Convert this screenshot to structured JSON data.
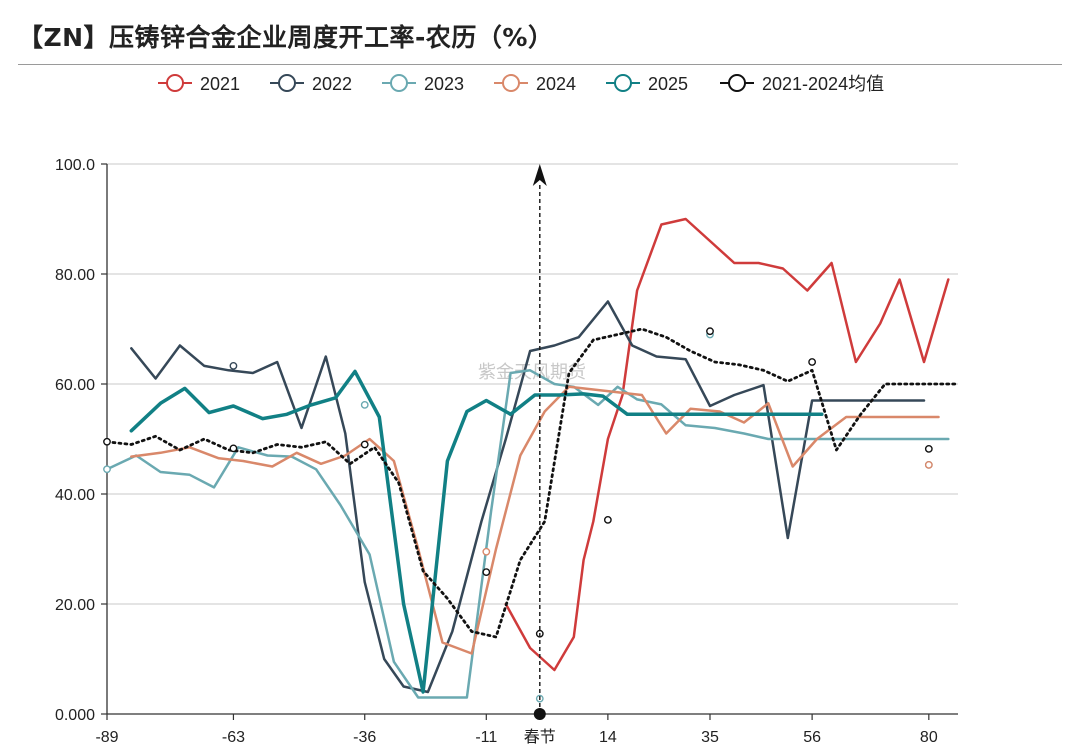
{
  "title": "【ZN】压铸锌合金企业周度开工率-农历（%）",
  "watermark": "紫金天风期货",
  "chart_data": {
    "type": "line",
    "title": "【ZN】压铸锌合金企业周度开工率-农历（%）",
    "xlabel": "",
    "ylabel": "",
    "xlim": [
      -89,
      86
    ],
    "ylim": [
      0,
      100
    ],
    "x_ticks": [
      {
        "value": -89,
        "label": "-89"
      },
      {
        "value": -63,
        "label": "-63"
      },
      {
        "value": -36,
        "label": "-36"
      },
      {
        "value": -11,
        "label": "-11"
      },
      {
        "value": 0,
        "label": "春节"
      },
      {
        "value": 14,
        "label": "14"
      },
      {
        "value": 35,
        "label": "35"
      },
      {
        "value": 56,
        "label": "56"
      },
      {
        "value": 80,
        "label": "80"
      }
    ],
    "y_ticks": [
      {
        "value": 0,
        "label": "0.000"
      },
      {
        "value": 20,
        "label": "20.00"
      },
      {
        "value": 40,
        "label": "40.00"
      },
      {
        "value": 60,
        "label": "60.00"
      },
      {
        "value": 80,
        "label": "80.00"
      },
      {
        "value": 100,
        "label": "100.0"
      }
    ],
    "grid": true,
    "legend_position": "top",
    "annotation": {
      "type": "vertical-arrow",
      "x": 0,
      "from": 0,
      "to": 100
    },
    "series": [
      {
        "name": "2021",
        "color": "#cf3b3b",
        "width": 2.5,
        "dash": "",
        "x": [
          -7,
          -2,
          3,
          7,
          9,
          11,
          14,
          17,
          20,
          25,
          30,
          35,
          40,
          45,
          50,
          55,
          60,
          65,
          70,
          74,
          79,
          84
        ],
        "y": [
          20,
          12,
          8,
          14,
          28,
          35,
          50,
          58,
          77,
          89,
          90,
          86,
          82,
          82,
          81,
          77,
          82,
          64,
          71,
          79,
          64,
          79
        ],
        "markers": []
      },
      {
        "name": "2022",
        "color": "#364858",
        "width": 2.5,
        "dash": "",
        "x": [
          -84,
          -79,
          -74,
          -69,
          -64,
          -59,
          -54,
          -49,
          -44,
          -40,
          -36,
          -32,
          -28,
          -23,
          -18,
          -12,
          -7,
          -2,
          3,
          8,
          14,
          19,
          24,
          30,
          35,
          40,
          46,
          51,
          56,
          61,
          66,
          71,
          76,
          79
        ],
        "y": [
          66.5,
          61,
          67,
          63.3,
          62.5,
          62,
          64,
          52,
          65,
          51,
          24,
          10,
          5,
          4,
          15,
          35,
          50,
          66,
          67,
          68.5,
          75,
          67,
          65,
          64.5,
          56,
          58,
          59.8,
          32,
          57,
          57,
          57,
          57,
          57,
          57
        ],
        "markers": [
          [
            -63,
            63.3
          ]
        ]
      },
      {
        "name": "2023",
        "color": "#6aa9b1",
        "width": 2.5,
        "dash": "",
        "x": [
          -89,
          -83,
          -78,
          -72,
          -67,
          -62,
          -56,
          -51,
          -46,
          -41,
          -35,
          -30,
          -25,
          -20,
          -15,
          -10,
          -6,
          -2,
          3,
          7,
          12,
          16,
          20,
          25,
          30,
          36,
          42,
          47,
          52,
          58,
          63,
          68,
          73,
          78,
          84
        ],
        "y": [
          44.5,
          47,
          44,
          43.5,
          41.2,
          48.5,
          47,
          46.8,
          44.5,
          38,
          29,
          9.5,
          3,
          3,
          3,
          37,
          62,
          62.5,
          60,
          59.5,
          56.2,
          59.5,
          57.2,
          56.3,
          52.5,
          52,
          51,
          50,
          50,
          50,
          50,
          50,
          50,
          50,
          50
        ],
        "markers": [
          [
            -89,
            44.5
          ],
          [
            -36,
            56.2
          ],
          [
            0,
            2.8
          ],
          [
            35,
            69
          ],
          [
            80,
            45.3
          ]
        ]
      },
      {
        "name": "2024",
        "color": "#d9886a",
        "width": 2.5,
        "dash": "",
        "x": [
          -84,
          -78,
          -72,
          -66,
          -61,
          -55,
          -50,
          -45,
          -40,
          -35,
          -30,
          -25,
          -20,
          -14,
          -9,
          -4,
          1,
          6,
          11,
          16,
          21,
          26,
          31,
          37,
          42,
          47,
          52,
          57,
          63,
          68,
          73,
          78,
          82
        ],
        "y": [
          46.8,
          47.5,
          48.5,
          46.5,
          46,
          45,
          47.5,
          45.5,
          47,
          50,
          46,
          30,
          13,
          11,
          30,
          47,
          55,
          59.5,
          59,
          58.5,
          58,
          51,
          55.5,
          55,
          53,
          56.5,
          45,
          50,
          54,
          54,
          54,
          54,
          54
        ],
        "markers": [
          [
            -11,
            29.5
          ],
          [
            80,
            45.3
          ]
        ]
      },
      {
        "name": "2025",
        "color": "#118085",
        "width": 3.5,
        "dash": "",
        "x": [
          -84,
          -78,
          -73,
          -68,
          -63,
          -57,
          -52,
          -47,
          -42,
          -38,
          -33,
          -28,
          -24,
          -19,
          -15,
          -11,
          -6,
          -1,
          4,
          9,
          13,
          18,
          23,
          28,
          33,
          38,
          43,
          48,
          53,
          58
        ],
        "y": [
          51.5,
          56.5,
          59.2,
          54.8,
          56,
          53.7,
          54.5,
          56.2,
          57.5,
          62.3,
          54,
          20,
          4,
          46,
          55,
          57,
          54.5,
          58,
          58,
          58.2,
          57.8,
          54.5,
          54.5,
          54.5,
          54.5,
          54.5,
          54.5,
          54.5,
          54.5,
          54.5
        ],
        "markers": []
      },
      {
        "name": "2021-2024均值",
        "color": "#111111",
        "width": 2.8,
        "dash": "2,4",
        "x": [
          -89,
          -84,
          -79,
          -74,
          -69,
          -64,
          -59,
          -54,
          -49,
          -44,
          -39,
          -34,
          -29,
          -24,
          -19,
          -14,
          -9,
          -4,
          1,
          6,
          11,
          16,
          21,
          26,
          31,
          36,
          41,
          46,
          51,
          56,
          61,
          66,
          71,
          76,
          81,
          86
        ],
        "y": [
          49.5,
          49,
          50.5,
          48,
          50,
          48,
          47.5,
          49,
          48.5,
          49.5,
          45.5,
          48.5,
          42,
          26,
          21,
          15,
          14,
          28,
          35,
          62,
          68,
          69,
          70,
          68.5,
          66,
          64,
          63.5,
          62.5,
          60.5,
          62.5,
          48,
          54.5,
          60,
          60,
          60,
          60
        ],
        "markers": [
          [
            -89,
            49.5
          ],
          [
            -63,
            48.3
          ],
          [
            -36,
            49
          ],
          [
            -11,
            25.8
          ],
          [
            0,
            14.6
          ],
          [
            14,
            35.3
          ],
          [
            35,
            69.6
          ],
          [
            56,
            64
          ],
          [
            80,
            48.2
          ]
        ]
      }
    ]
  }
}
